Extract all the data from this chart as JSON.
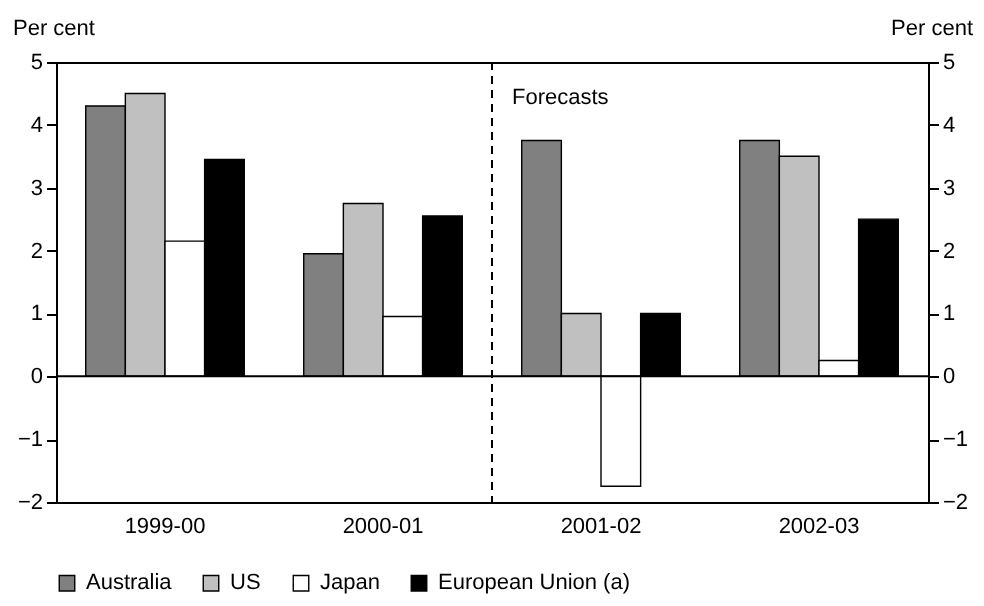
{
  "chart_data": {
    "type": "bar",
    "categories": [
      "1999-00",
      "2000-01",
      "2001-02",
      "2002-03"
    ],
    "ylabel": "Per cent",
    "y2label": "Per cent",
    "series": [
      {
        "name": "Australia",
        "color": "#808080",
        "values": [
          4.3,
          1.95,
          3.75,
          3.75
        ]
      },
      {
        "name": "US",
        "color": "#c0c0c0",
        "values": [
          4.5,
          2.75,
          1.0,
          3.5
        ]
      },
      {
        "name": "Japan",
        "color": "#ffffff",
        "values": [
          2.15,
          0.95,
          -1.75,
          0.25
        ]
      },
      {
        "name": "European Union (a)",
        "color": "#000000",
        "values": [
          3.45,
          2.55,
          1.0,
          2.5
        ]
      }
    ],
    "ylim": [
      -2,
      5
    ],
    "yticks": [
      -2,
      -1,
      0,
      1,
      2,
      3,
      4,
      5
    ],
    "y2lim": [
      -2,
      5
    ],
    "y2ticks": [
      -2,
      -1,
      0,
      1,
      2,
      3,
      4,
      5
    ],
    "ref_lines": [
      {
        "axis": "x",
        "value": "2001-02",
        "line_style": "dashed"
      }
    ],
    "annotations": [
      "Forecasts"
    ],
    "grid": false,
    "legend": "bottom"
  }
}
